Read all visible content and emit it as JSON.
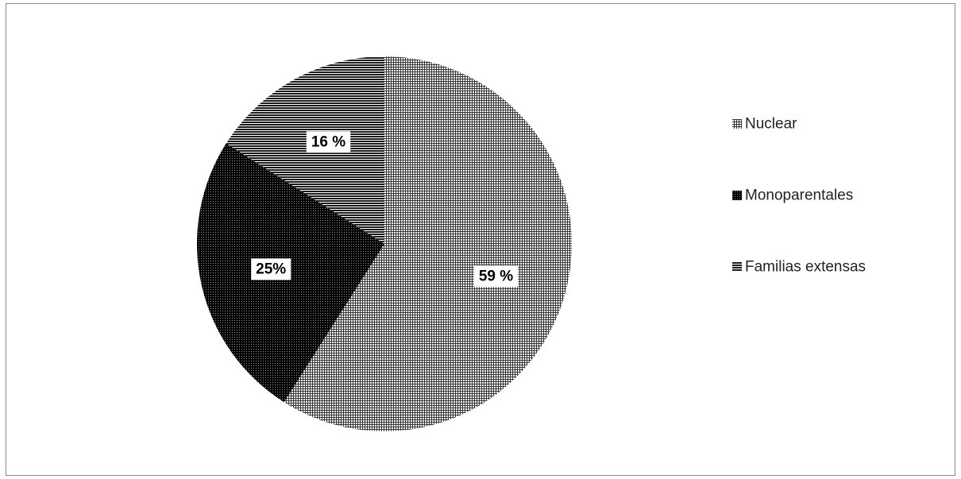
{
  "chart_data": {
    "type": "pie",
    "title": "",
    "slices": [
      {
        "name": "Nuclear",
        "value": 59,
        "label": "59 %",
        "pattern": "grid"
      },
      {
        "name": "Monoparentales",
        "value": 25,
        "label": "25%",
        "pattern": "dense-dots"
      },
      {
        "name": "Familias extensas",
        "value": 16,
        "label": "16 %",
        "pattern": "horizontal-lines"
      }
    ],
    "start_angle_deg": 0,
    "direction": "clockwise",
    "legend_position": "right",
    "legend": [
      {
        "label": "Nuclear",
        "pattern": "grid"
      },
      {
        "label": "Monoparentales",
        "pattern": "dense-dots"
      },
      {
        "label": "Familias extensas",
        "pattern": "horizontal-lines"
      }
    ]
  }
}
